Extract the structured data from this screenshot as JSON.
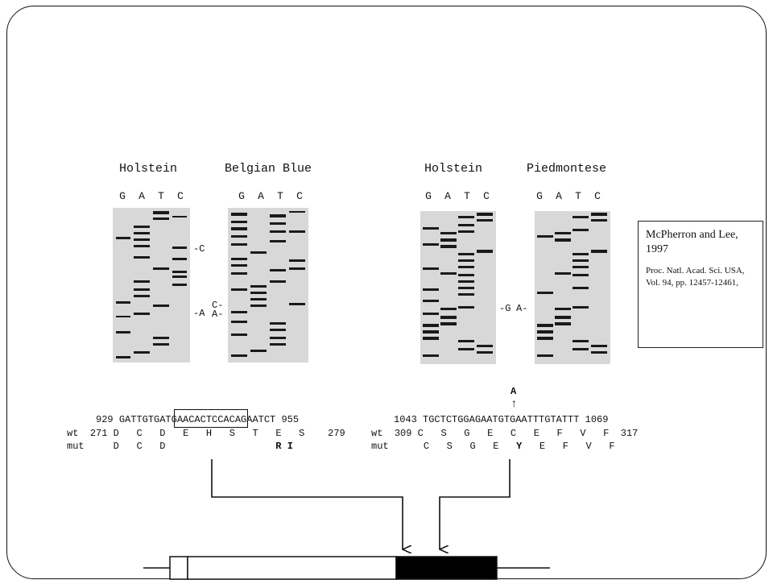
{
  "figure": {
    "gel_left": {
      "panel1_title": "Holstein",
      "panel2_title": "Belgian Blue",
      "lanes1": [
        "G",
        "A",
        "T",
        "C"
      ],
      "lanes2": [
        "G",
        "A",
        "T",
        "C"
      ],
      "mark_c": "-C",
      "mark_a": "-A",
      "mark_c2": "C-",
      "mark_a2": "A-"
    },
    "gel_right": {
      "panel1_title": "Holstein",
      "panel2_title": "Piedmontese",
      "lanes1": [
        "G",
        "A",
        "T",
        "C"
      ],
      "lanes2": [
        "G",
        "A",
        "T",
        "C"
      ],
      "mark_g": "-G",
      "mark_a": "A-"
    },
    "seq_left": {
      "start_nt": "929",
      "dna_pre": "GATTGTGA",
      "dna_boxed": "TGAACACTCCA",
      "dna_post": "CAGAATCT",
      "end_nt": "955",
      "wt_label": "wt",
      "wt_start": "271",
      "wt_aa": [
        "D",
        "C",
        "D",
        "E",
        "H",
        "S",
        "T",
        "E",
        "S"
      ],
      "wt_end": "279",
      "mut_label": "mut",
      "mut_aa": [
        "D",
        "C",
        "D"
      ],
      "mut_bold": [
        "R",
        "I"
      ]
    },
    "seq_right": {
      "start_nt": "1043",
      "dna": "TGCTCTGGAGAATGTGAATTTGTATTT",
      "end_nt": "1069",
      "substitution": "A",
      "up_arrow": "↑",
      "wt_label": "wt",
      "wt_start": "309",
      "wt_aa": [
        "C",
        "S",
        "G",
        "E",
        "C",
        "E",
        "F",
        "V",
        "F"
      ],
      "wt_end": "317",
      "mut_label": "mut",
      "mut_aa_pre": [
        "C",
        "S",
        "G",
        "E"
      ],
      "mut_bold": "Y",
      "mut_aa_post": [
        "E",
        "F",
        "V",
        "F"
      ]
    }
  },
  "citation": {
    "authors": "McPherron and Lee, 1997",
    "journal": "Proc. Natl. Acad. Sci. USA, Vol. 94, pp. 12457-12461,"
  }
}
